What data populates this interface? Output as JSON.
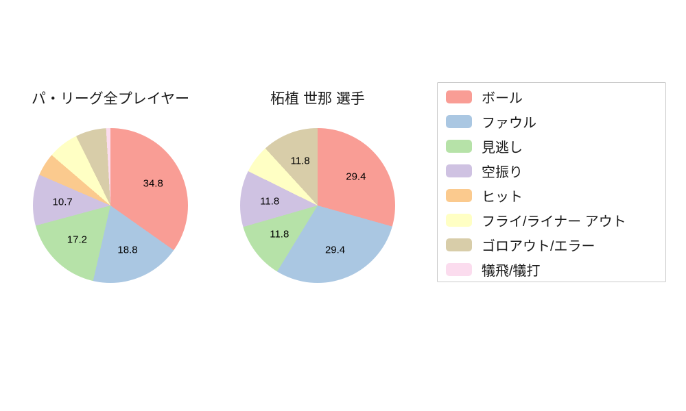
{
  "chart_data": [
    {
      "type": "pie",
      "title": "パ・リーグ全プレイヤー",
      "categories": [
        "ボール",
        "ファウル",
        "見逃し",
        "空振り",
        "ヒット",
        "フライ/ライナー アウト",
        "ゴロアウト/エラー",
        "犠飛/犠打"
      ],
      "values": [
        34.8,
        18.8,
        17.2,
        10.7,
        4.8,
        6.4,
        6.4,
        0.9
      ],
      "data_labels": [
        "34.8",
        "18.8",
        "17.2",
        "10.7",
        "",
        "",
        "",
        ""
      ],
      "start_angle": "top",
      "direction": "clockwise"
    },
    {
      "type": "pie",
      "title": "柘植 世那  選手",
      "categories": [
        "ボール",
        "ファウル",
        "見逃し",
        "空振り",
        "ヒット",
        "フライ/ライナー アウト",
        "ゴロアウト/エラー",
        "犠飛/犠打"
      ],
      "values": [
        29.4,
        29.4,
        11.8,
        11.8,
        0,
        5.9,
        11.8,
        0
      ],
      "data_labels": [
        "29.4",
        "29.4",
        "11.8",
        "11.8",
        "",
        "",
        "11.8",
        ""
      ],
      "start_angle": "top",
      "direction": "clockwise"
    }
  ],
  "legend": {
    "position": "right",
    "items": [
      {
        "label": "ボール",
        "color": "#f99d95"
      },
      {
        "label": "ファウル",
        "color": "#aac7e2"
      },
      {
        "label": "見逃し",
        "color": "#b6e2a8"
      },
      {
        "label": "空振り",
        "color": "#cfc2e2"
      },
      {
        "label": "ヒット",
        "color": "#fbca8e"
      },
      {
        "label": "フライ/ライナー アウト",
        "color": "#ffffc4"
      },
      {
        "label": "ゴロアウト/エラー",
        "color": "#d8cda9"
      },
      {
        "label": "犠飛/犠打",
        "color": "#fbdcee"
      }
    ]
  }
}
